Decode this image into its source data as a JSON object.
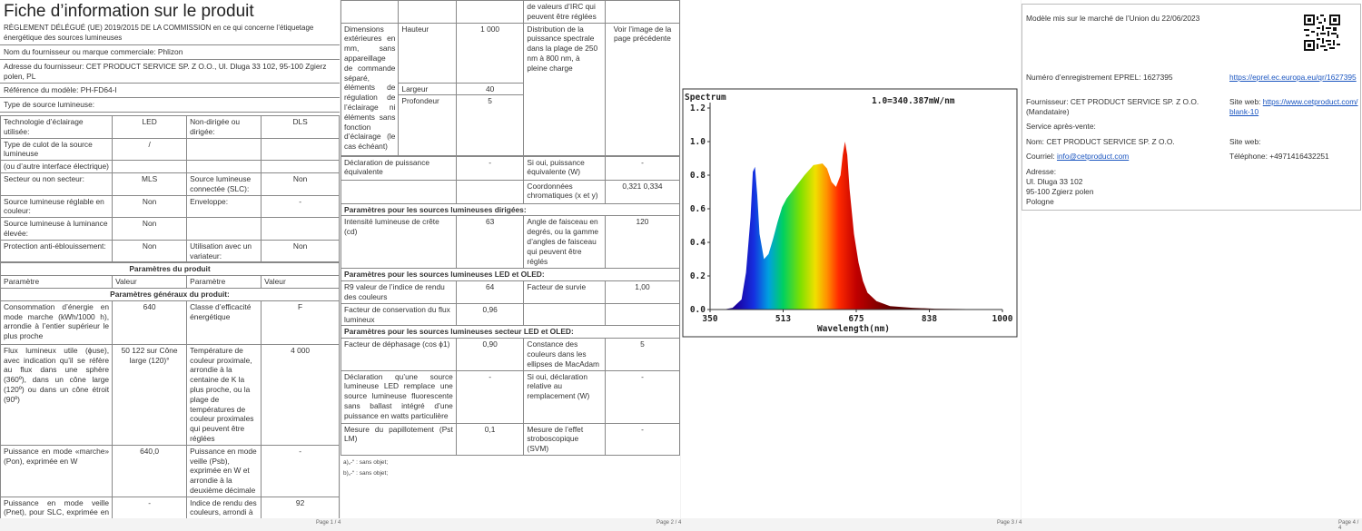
{
  "page1": {
    "title": "Fiche d’information sur le produit",
    "regulation": "RÈGLEMENT DÉLÉGUÉ (UE) 2019/2015 DE LA COMMISSION en ce qui concerne l’étiquetage énergétique des sources lumineuses",
    "supplier_name_label": "Nom du fournisseur ou marque commerciale:",
    "supplier_name": "Phlizon",
    "address_label": "Adresse du fournisseur:",
    "address": "CET PRODUCT SERVICE SP. Z O.O., Ul. Dluga 33 102, 95-100 Zgierz polen, PL",
    "model_label": "Référence du modèle:",
    "model": "PH-FD64-I",
    "type_label": "Type de source lumineuse:",
    "t1": [
      [
        "Technologie d’éclairage utilisée:",
        "LED",
        "Non-dirigée ou dirigée:",
        "DLS"
      ],
      [
        "Type de culot de la source lumineuse",
        "/",
        "",
        ""
      ],
      [
        "(ou d’autre interface électrique)",
        "",
        "",
        ""
      ],
      [
        "Secteur ou non secteur:",
        "MLS",
        "Source lumineuse connectée (SLC):",
        "Non"
      ],
      [
        "Source lumineuse réglable en couleur:",
        "Non",
        "Enveloppe:",
        "-"
      ],
      [
        "Source lumineuse à luminance élevée:",
        "Non",
        "",
        ""
      ],
      [
        "Protection anti-éblouissement:",
        "Non",
        "Utilisation avec un variateur:",
        "Non"
      ]
    ],
    "params_title": "Paramètres du produit",
    "headers": [
      "Paramètre",
      "Valeur",
      "Paramètre",
      "Valeur"
    ],
    "general_title": "Paramètres généraux du produit:",
    "t2": [
      [
        "Consommation d’énergie en mode marche (kWh/1000 h), arrondie à l’entier supérieur le plus proche",
        "640",
        "Classe d’efficacité énergétique",
        "F"
      ],
      [
        "Flux lumineux utile (ϕuse), avec indication qu’il se réfère au flux dans une sphère (360º), dans un cône large (120º) ou dans un cône étroit (90º)",
        "50 122 sur Cône large (120)°",
        "Température de couleur proximale, arrondie à la centaine de K la plus proche, ou la plage de températures de couleur proximales qui peuvent être réglées",
        "4 000"
      ],
      [
        "Puissance en mode «marche» (Pon), exprimée en W",
        "640,0",
        "Puissance en mode veille (Psb), exprimée en W et arrondie à la deuxième décimale",
        "-"
      ],
      [
        "Puissance en mode veille (Pnet), pour SLC, exprimée en W et arrondie à la deuxième décimale",
        "-",
        "Indice de rendu des couleurs, arrondi à l’entier le plus proche, ou la plage",
        "92"
      ]
    ],
    "page_num": "Page 1 / 4"
  },
  "page2": {
    "top_right": "de valeurs d’IRC qui peuvent être réglées",
    "dim_label": "Dimensions extérieures en mm, sans appareillage de commande séparé, éléments de régulation de l’éclairage ni éléments sans fonction d’éclairage (le cas échéant)",
    "dims": [
      [
        "Hauteur",
        "1 000"
      ],
      [
        "Largeur",
        "40"
      ],
      [
        "Profondeur",
        "5"
      ]
    ],
    "spd_label": "Distribution de la puissance spectrale dans la plage de 250 nm à 800 nm, à pleine charge",
    "spd_value": "Voir l’image de la page précédente",
    "rows_a": [
      [
        "Déclaration de puissance équivalente",
        "-",
        "Si oui, puissance équivalente (W)",
        "-"
      ],
      [
        "",
        "",
        "Coordonnées chromatiques (x et y)",
        "0,321 0,334"
      ]
    ],
    "dir_title": "Paramètres pour les sources lumineuses dirigées:",
    "rows_b": [
      [
        "Intensité lumineuse de crête (cd)",
        "63",
        "Angle de faisceau en degrés, ou la gamme d’angles de faisceau qui peuvent être réglés",
        "120"
      ]
    ],
    "led_title": "Paramètres pour les sources lumineuses LED et OLED:",
    "rows_c": [
      [
        "R9 valeur de l’indice de rendu des couleurs",
        "64",
        "Facteur de survie",
        "1,00"
      ],
      [
        "Facteur de conservation du flux lumineux",
        "0,96",
        "",
        ""
      ]
    ],
    "mains_title": "Paramètres pour les sources lumineuses secteur LED et OLED:",
    "rows_d": [
      [
        "Facteur de déphasage (cos ϕ1)",
        "0,90",
        "Constance des couleurs dans les ellipses de MacAdam",
        "5"
      ],
      [
        "Déclaration qu’une source lumineuse LED remplace une source lumineuse fluorescente sans ballast intégré d’une puissance en watts particulière",
        "-",
        "Si oui, déclaration relative au remplacement (W)",
        "-"
      ],
      [
        "Mesure du papillotement (Pst LM)",
        "0,1",
        "Mesure de l’effet stroboscopique (SVM)",
        "-"
      ]
    ],
    "note_a": "a)„-“ : sans objet;",
    "note_b": "b)„-“ : sans objet;",
    "page_num": "Page 2 / 4"
  },
  "page3": {
    "page_num": "Page 3 / 4"
  },
  "page4": {
    "market": "Modèle mis sur le marché de l’Union du 22/06/2023",
    "eprel_label": "Numéro d’enregistrement EPREL:",
    "eprel": "1627395",
    "eprel_link": "https://eprel.ec.europa.eu/qr/1627395",
    "supplier_label": "Fournisseur:",
    "supplier": "CET PRODUCT SERVICE SP. Z O.O. (Mandataire)",
    "web_label": "Site web:",
    "web": "https://www.cetproduct.com/blank-10",
    "service_label": "Service après-vente:",
    "name_label": "Nom:",
    "name": "CET PRODUCT SERVICE SP. Z O.O.",
    "web2_label": "Site web:",
    "mail_label": "Courriel:",
    "mail": "info@cetproduct.com",
    "phone_label": "Téléphone:",
    "phone": "+4971416432251",
    "addr_label": "Adresse:",
    "addr1": "Ul. Dluga 33 102",
    "addr2": "95-100 Zgierz polen",
    "addr3": "Pologne",
    "page_num": "Page 4 / 4"
  },
  "chart_data": {
    "type": "area",
    "title": "Spectrum",
    "annotation": "1.0=340.387mW/nm",
    "xlabel": "Wavelength(nm)",
    "ylabel": "",
    "xlim": [
      350,
      1000
    ],
    "ylim": [
      0,
      1.2
    ],
    "xticks": [
      "350",
      "513",
      "675",
      "838",
      "1000"
    ],
    "yticks": [
      "0.0",
      "0.2",
      "0.4",
      "0.6",
      "0.8",
      "1.0",
      "1.2"
    ],
    "x": [
      350,
      380,
      400,
      420,
      430,
      440,
      445,
      450,
      455,
      460,
      470,
      480,
      490,
      500,
      510,
      520,
      540,
      560,
      580,
      600,
      610,
      620,
      630,
      640,
      645,
      650,
      655,
      660,
      670,
      680,
      690,
      700,
      720,
      750,
      800,
      850,
      900,
      1000
    ],
    "y": [
      0.0,
      0.0,
      0.01,
      0.06,
      0.22,
      0.55,
      0.82,
      0.85,
      0.68,
      0.45,
      0.3,
      0.33,
      0.42,
      0.52,
      0.61,
      0.66,
      0.73,
      0.8,
      0.86,
      0.87,
      0.84,
      0.76,
      0.73,
      0.8,
      0.92,
      1.0,
      0.92,
      0.72,
      0.45,
      0.28,
      0.17,
      0.1,
      0.05,
      0.02,
      0.01,
      0.005,
      0.003,
      0.0
    ]
  }
}
